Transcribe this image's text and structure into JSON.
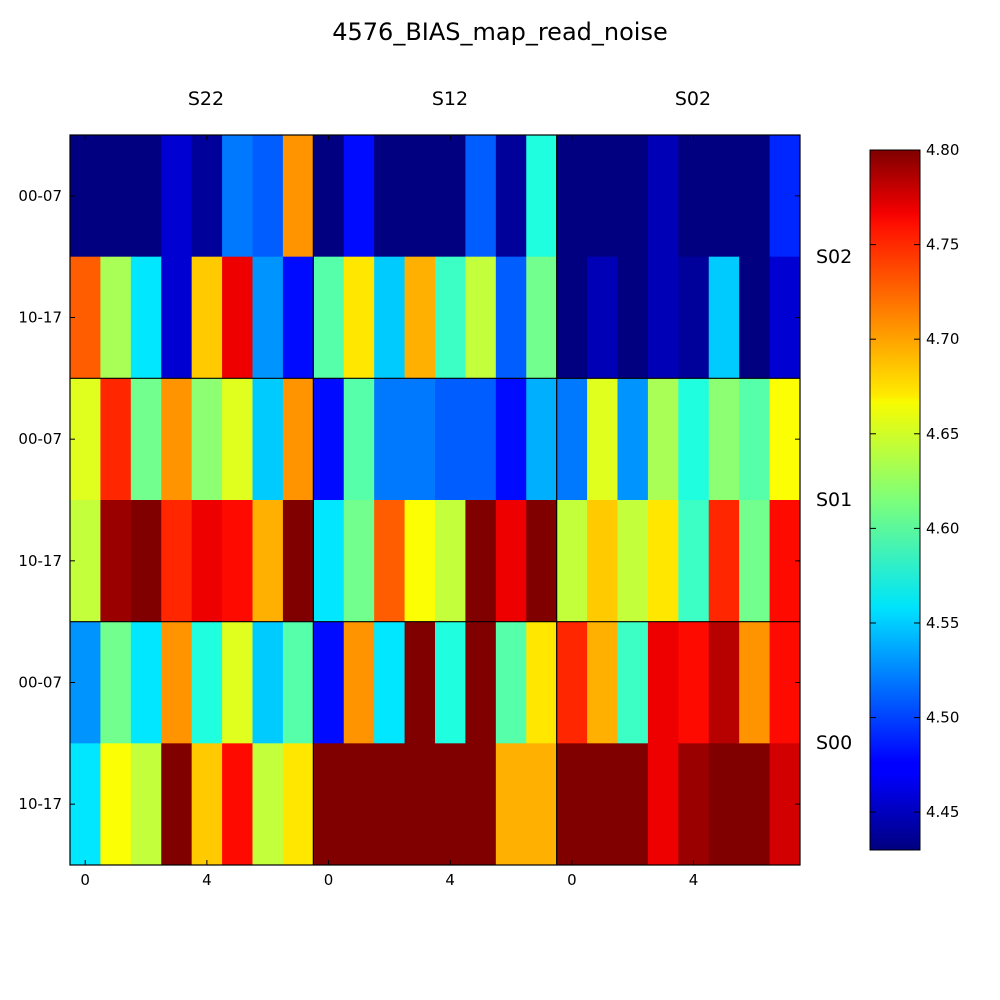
{
  "chart_data": {
    "type": "heatmap",
    "title": "4576_BIAS_map_read_noise",
    "colormap": "jet",
    "vmin": 4.43,
    "vmax": 4.8,
    "colorbar": {
      "ticks": [
        "4.45",
        "4.50",
        "4.55",
        "4.60",
        "4.65",
        "4.70",
        "4.75",
        "4.80"
      ],
      "tick_values": [
        4.45,
        4.5,
        4.55,
        4.6,
        4.65,
        4.7,
        4.75,
        4.8
      ]
    },
    "column_groups": [
      "S22",
      "S12",
      "S02"
    ],
    "row_groups": [
      "S02",
      "S01",
      "S00"
    ],
    "row_tick_labels": [
      "00-07",
      "10-17",
      "00-07",
      "10-17",
      "00-07",
      "10-17"
    ],
    "x_tick_labels": [
      "0",
      "4",
      "0",
      "4",
      "0",
      "4"
    ],
    "x_tick_positions": [
      0,
      4,
      8,
      12,
      16,
      20
    ],
    "values": [
      [
        4.43,
        4.43,
        4.43,
        4.46,
        4.44,
        4.52,
        4.51,
        4.7,
        4.43,
        4.48,
        4.43,
        4.43,
        4.43,
        4.51,
        4.44,
        4.58,
        4.43,
        4.43,
        4.43,
        4.45,
        4.43,
        4.43,
        4.43,
        4.49
      ],
      [
        4.72,
        4.63,
        4.56,
        4.46,
        4.68,
        4.76,
        4.53,
        4.48,
        4.6,
        4.67,
        4.55,
        4.69,
        4.59,
        4.64,
        4.51,
        4.61,
        4.43,
        4.45,
        4.43,
        4.45,
        4.44,
        4.55,
        4.43,
        4.46
      ],
      [
        4.65,
        4.74,
        4.61,
        4.7,
        4.62,
        4.65,
        4.55,
        4.7,
        4.48,
        4.6,
        4.52,
        4.52,
        4.51,
        4.51,
        4.48,
        4.54,
        4.52,
        4.65,
        4.53,
        4.63,
        4.58,
        4.62,
        4.6,
        4.66
      ],
      [
        4.64,
        4.79,
        4.8,
        4.74,
        4.76,
        4.75,
        4.69,
        4.8,
        4.56,
        4.61,
        4.72,
        4.66,
        4.64,
        4.8,
        4.76,
        4.8,
        4.64,
        4.68,
        4.64,
        4.67,
        4.59,
        4.74,
        4.61,
        4.75
      ],
      [
        4.53,
        4.61,
        4.56,
        4.7,
        4.58,
        4.65,
        4.55,
        4.6,
        4.48,
        4.7,
        4.56,
        4.8,
        4.58,
        4.8,
        4.6,
        4.67,
        4.74,
        4.69,
        4.59,
        4.76,
        4.75,
        4.78,
        4.7,
        4.75
      ],
      [
        4.56,
        4.66,
        4.64,
        4.8,
        4.68,
        4.75,
        4.64,
        4.67,
        4.8,
        4.8,
        4.8,
        4.8,
        4.8,
        4.8,
        4.69,
        4.69,
        4.8,
        4.8,
        4.8,
        4.76,
        4.79,
        4.8,
        4.8,
        4.77
      ]
    ]
  }
}
